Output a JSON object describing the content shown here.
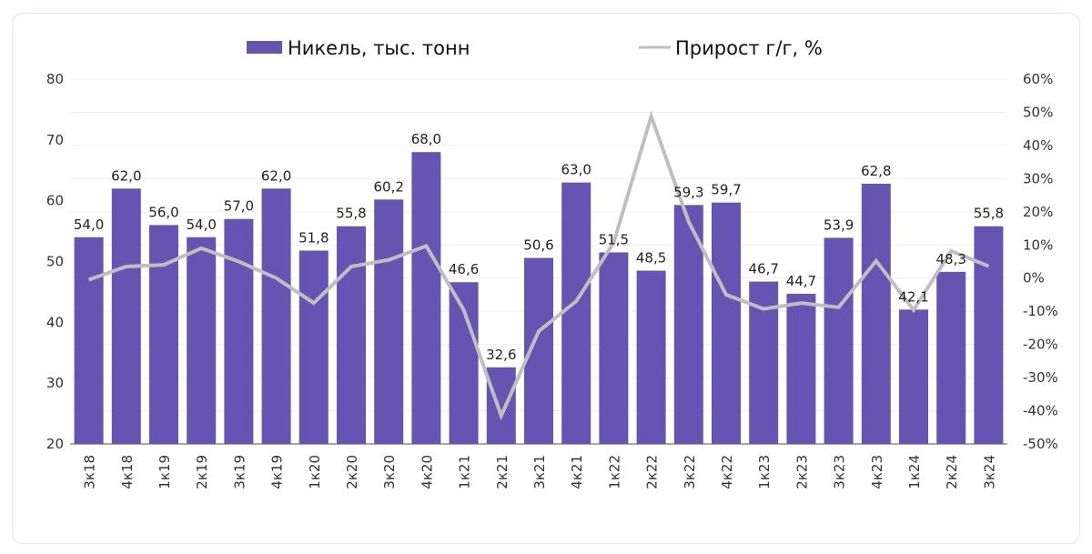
{
  "chart_data": {
    "type": "bar",
    "title": "",
    "xlabel": "",
    "ylabel": "",
    "categories": [
      "3к18",
      "4к18",
      "1к19",
      "2к19",
      "3к19",
      "4к19",
      "1к20",
      "2к20",
      "3к20",
      "4к20",
      "1к21",
      "2к21",
      "3к21",
      "4к21",
      "1к22",
      "2к22",
      "3к22",
      "4к22",
      "1к23",
      "2к23",
      "3к23",
      "4к23",
      "1к24",
      "2к24",
      "3к24"
    ],
    "series": [
      {
        "name": "Никель, тыс. тонн",
        "type": "bar",
        "axis": "left",
        "color": "#6554b2",
        "values": [
          54.0,
          62.0,
          56.0,
          54.0,
          57.0,
          62.0,
          51.8,
          55.8,
          60.2,
          68.0,
          46.6,
          32.6,
          50.6,
          63.0,
          51.5,
          48.5,
          59.3,
          59.7,
          46.7,
          44.7,
          53.9,
          62.8,
          42.1,
          48.3,
          55.8
        ],
        "labels": [
          "54,0",
          "62,0",
          "56,0",
          "54,0",
          "57,0",
          "62,0",
          "51,8",
          "55,8",
          "60,2",
          "68,0",
          "46,6",
          "32,6",
          "50,6",
          "63,0",
          "51,5",
          "48,5",
          "59,3",
          "59,7",
          "46,7",
          "44,7",
          "53,9",
          "62,8",
          "42,1",
          "48,3",
          "55,8"
        ]
      },
      {
        "name": "Прирост г/г, %",
        "type": "line",
        "axis": "right",
        "color": "#bfbfbf",
        "values": [
          -0.5,
          3.5,
          4.0,
          9.0,
          5.0,
          0.0,
          -7.5,
          3.5,
          5.5,
          9.7,
          -9.6,
          -41.5,
          -16.0,
          -7.0,
          10.7,
          48.8,
          17.0,
          -5.0,
          -9.3,
          -7.5,
          -8.8,
          5.2,
          -9.6,
          8.2,
          3.6
        ]
      }
    ],
    "y_left": {
      "ylim": [
        20,
        80
      ],
      "ticks": [
        "20",
        "30",
        "40",
        "50",
        "60",
        "70",
        "80"
      ]
    },
    "y_right": {
      "ylim": [
        -50,
        60
      ],
      "ticks": [
        "-50%",
        "-40%",
        "-30%",
        "-20%",
        "-10%",
        "0%",
        "10%",
        "20%",
        "30%",
        "40%",
        "50%",
        "60%"
      ]
    },
    "grid": true,
    "legend_position": "top"
  },
  "legend": {
    "bar_label": "Никель, тыс. тонн",
    "line_label": "Прирост г/г, %"
  }
}
